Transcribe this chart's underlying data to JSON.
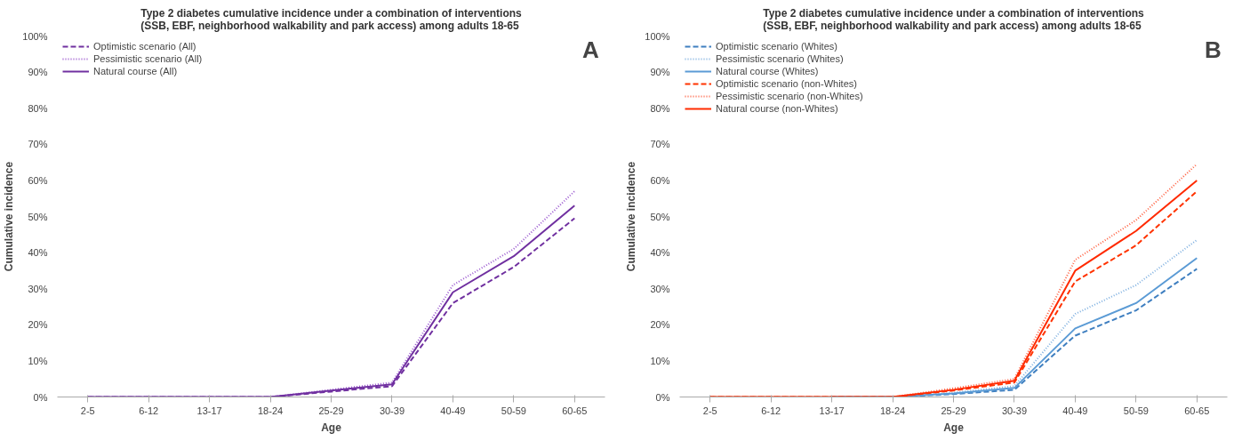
{
  "chart_data": [
    {
      "type": "line",
      "title": "Type 2 diabetes cumulative incidence under a combination of interventions (SSB, EBF, neighborhood walkability and park access) among adults 18-65",
      "xlabel": "Age",
      "ylabel": "Cumulative incidence",
      "annotations": [
        "A"
      ],
      "categories": [
        "2-5",
        "6-12",
        "13-17",
        "18-24",
        "25-29",
        "30-39",
        "40-49",
        "50-59",
        "60-65"
      ],
      "ylim": [
        0,
        100
      ],
      "yticks": [
        {
          "value": 0,
          "label": "0%"
        },
        {
          "value": 10,
          "label": "10%"
        },
        {
          "value": 20,
          "label": "20%"
        },
        {
          "value": 30,
          "label": "30%"
        },
        {
          "value": 40,
          "label": "40%"
        },
        {
          "value": 50,
          "label": "50%"
        },
        {
          "value": 60,
          "label": "60%"
        },
        {
          "value": 70,
          "label": "70%"
        },
        {
          "value": 80,
          "label": "80%"
        },
        {
          "value": 90,
          "label": "90%"
        },
        {
          "value": 100,
          "label": "100%"
        }
      ],
      "grid": false,
      "legend": "top left",
      "marker": "none",
      "series": [
        {
          "name": "Optimistic scenario (All)",
          "color": "#7030a0",
          "line_style": "dashed",
          "values": [
            0,
            0,
            0,
            0,
            1.5,
            3,
            26,
            36,
            49.5
          ]
        },
        {
          "name": "Pessimistic scenario (All)",
          "color": "#9b59d0",
          "line_style": "dotted",
          "values": [
            0,
            0,
            0,
            0,
            2,
            4,
            31,
            41,
            57
          ]
        },
        {
          "name": "Natural course (All)",
          "color": "#7030a0",
          "line_style": "solid",
          "values": [
            0,
            0,
            0,
            0,
            1.8,
            3.5,
            29,
            39,
            53
          ]
        }
      ]
    },
    {
      "type": "line",
      "title": "Type 2 diabetes cumulative incidence under a combination of interventions (SSB, EBF, neighborhood walkability and park access) among adults 18-65",
      "xlabel": "Age",
      "ylabel": "Cumulative incidence",
      "annotations": [
        "B"
      ],
      "categories": [
        "2-5",
        "6-12",
        "13-17",
        "18-24",
        "25-29",
        "30-39",
        "40-49",
        "50-59",
        "60-65"
      ],
      "ylim": [
        0,
        100
      ],
      "yticks": [
        {
          "value": 0,
          "label": "0%"
        },
        {
          "value": 10,
          "label": "10%"
        },
        {
          "value": 20,
          "label": "20%"
        },
        {
          "value": 30,
          "label": "30%"
        },
        {
          "value": 40,
          "label": "40%"
        },
        {
          "value": 50,
          "label": "50%"
        },
        {
          "value": 60,
          "label": "60%"
        },
        {
          "value": 70,
          "label": "70%"
        },
        {
          "value": 80,
          "label": "80%"
        },
        {
          "value": 90,
          "label": "90%"
        },
        {
          "value": 100,
          "label": "100%"
        }
      ],
      "grid": false,
      "legend": "top left",
      "marker": "none",
      "series": [
        {
          "name": "Optimistic scenario (Whites)",
          "color": "#3f7fc0",
          "line_style": "dashed",
          "values": [
            null,
            null,
            0,
            0,
            0.8,
            2,
            17,
            24,
            35.5
          ]
        },
        {
          "name": "Pessimistic scenario (Whites)",
          "color": "#7fb0e0",
          "line_style": "dotted",
          "values": [
            null,
            null,
            0,
            0,
            1.2,
            3,
            23,
            31,
            43.5
          ]
        },
        {
          "name": "Natural course (Whites)",
          "color": "#5b9bd5",
          "line_style": "solid",
          "values": [
            null,
            null,
            0,
            0,
            1,
            2.5,
            19,
            26,
            38.5
          ]
        },
        {
          "name": "Optimistic scenario (non-Whites)",
          "color": "#ff3300",
          "line_style": "dashed",
          "values": [
            0,
            0,
            0,
            0,
            1.8,
            4,
            32,
            42,
            57
          ]
        },
        {
          "name": "Pessimistic scenario (non-Whites)",
          "color": "#ff6040",
          "line_style": "dotted",
          "values": [
            0,
            0,
            0,
            0,
            2.4,
            5,
            38,
            49,
            64.5
          ]
        },
        {
          "name": "Natural course (non-Whites)",
          "color": "#ff2a00",
          "line_style": "solid",
          "values": [
            0,
            0,
            0,
            0,
            2,
            4.5,
            35,
            46,
            60
          ]
        }
      ]
    }
  ]
}
